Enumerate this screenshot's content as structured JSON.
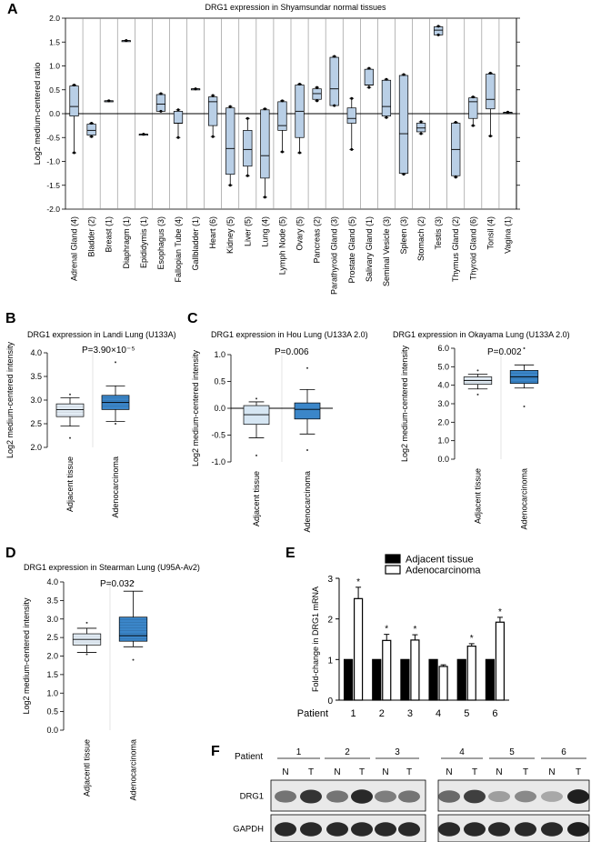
{
  "panels": {
    "A": "A",
    "B": "B",
    "C": "C",
    "D": "D",
    "E": "E",
    "F": "F"
  },
  "chart_data": [
    {
      "id": "A",
      "type": "box",
      "title": "DRG1 expression in Shyamsundar normal tissues",
      "ylabel": "Log2 medium-centered ratio",
      "ylim": [
        -2.0,
        2.0
      ],
      "yticks": [
        "-2.0",
        "-1.5",
        "-1.0",
        "-0.5",
        "0.0",
        "0.5",
        "1.0",
        "1.5",
        "2.0"
      ],
      "ytick_values": [
        -2.0,
        -1.5,
        -1.0,
        -0.5,
        0.0,
        0.5,
        1.0,
        1.5,
        2.0
      ],
      "categories": [
        "Adrenal Gland (4)",
        "Bladder (2)",
        "Breast (1)",
        "Diaphragm (1)",
        "Epididymis (1)",
        "Esophagus (3)",
        "Fallopian Tube (4)",
        "Gallbladder (1)",
        "Heart (6)",
        "Kidney (5)",
        "Liver (5)",
        "Lung (4)",
        "Lymph Node (5)",
        "Ovary (5)",
        "Pancreas (2)",
        "Parathyroid Gland (3)",
        "Prostate Gland (5)",
        "Salivary Gland (1)",
        "Seminal Vesicle (3)",
        "Spleen (3)",
        "Stomach (2)",
        "Testis (3)",
        "Thymus Gland (2)",
        "Thyroid Gland (6)",
        "Tonsil (4)",
        "Vagina (1)"
      ],
      "boxes": [
        {
          "min": -0.82,
          "q1": -0.05,
          "median": 0.15,
          "q3": 0.58,
          "max": 0.6
        },
        {
          "min": -0.48,
          "q1": -0.45,
          "median": -0.35,
          "q3": -0.22,
          "max": -0.2
        },
        {
          "min": 0.27,
          "q1": 0.27,
          "median": 0.27,
          "q3": 0.27,
          "max": 0.27
        },
        {
          "min": 1.53,
          "q1": 1.53,
          "median": 1.53,
          "q3": 1.53,
          "max": 1.53
        },
        {
          "min": -0.43,
          "q1": -0.43,
          "median": -0.43,
          "q3": -0.43,
          "max": -0.43
        },
        {
          "min": 0.05,
          "q1": 0.05,
          "median": 0.2,
          "q3": 0.4,
          "max": 0.42
        },
        {
          "min": -0.5,
          "q1": -0.2,
          "median": -0.2,
          "q3": 0.05,
          "max": 0.08
        },
        {
          "min": 0.52,
          "q1": 0.52,
          "median": 0.52,
          "q3": 0.52,
          "max": 0.52
        },
        {
          "min": -0.48,
          "q1": -0.25,
          "median": 0.25,
          "q3": 0.35,
          "max": 0.38
        },
        {
          "min": -1.5,
          "q1": -1.27,
          "median": -0.73,
          "q3": 0.12,
          "max": 0.15
        },
        {
          "min": -1.3,
          "q1": -1.1,
          "median": -0.75,
          "q3": -0.35,
          "max": -0.1
        },
        {
          "min": -1.75,
          "q1": -1.35,
          "median": -0.88,
          "q3": 0.08,
          "max": 0.1
        },
        {
          "min": -0.8,
          "q1": -0.35,
          "median": -0.25,
          "q3": 0.25,
          "max": 0.27
        },
        {
          "min": -0.82,
          "q1": -0.5,
          "median": 0.05,
          "q3": 0.6,
          "max": 0.62
        },
        {
          "min": 0.27,
          "q1": 0.3,
          "median": 0.42,
          "q3": 0.52,
          "max": 0.55
        },
        {
          "min": 0.17,
          "q1": 0.17,
          "median": 0.52,
          "q3": 1.18,
          "max": 1.2
        },
        {
          "min": -0.75,
          "q1": -0.2,
          "median": -0.1,
          "q3": 0.12,
          "max": 0.32
        },
        {
          "min": 0.55,
          "q1": 0.6,
          "median": 0.6,
          "q3": 0.93,
          "max": 0.95
        },
        {
          "min": -0.08,
          "q1": -0.05,
          "median": 0.15,
          "q3": 0.7,
          "max": 0.72
        },
        {
          "min": -1.27,
          "q1": -1.25,
          "median": -0.42,
          "q3": 0.8,
          "max": 0.82
        },
        {
          "min": -0.42,
          "q1": -0.38,
          "median": -0.3,
          "q3": -0.2,
          "max": -0.17
        },
        {
          "min": 1.65,
          "q1": 1.65,
          "median": 1.75,
          "q3": 1.82,
          "max": 1.83
        },
        {
          "min": -1.33,
          "q1": -1.3,
          "median": -0.75,
          "q3": -0.2,
          "max": -0.18
        },
        {
          "min": -0.25,
          "q1": -0.1,
          "median": 0.25,
          "q3": 0.33,
          "max": 0.35
        },
        {
          "min": -0.47,
          "q1": 0.1,
          "median": 0.3,
          "q3": 0.83,
          "max": 0.85
        },
        {
          "min": 0.03,
          "q1": 0.03,
          "median": 0.03,
          "q3": 0.03,
          "max": 0.03
        }
      ]
    },
    {
      "id": "B",
      "type": "box",
      "title": "DRG1 expression in Landi Lung (U133A)",
      "ylabel": "Log2 medium-centered intensity",
      "ylim": [
        2.0,
        4.0
      ],
      "yticks": [
        "2.0",
        "2.5",
        "3.0",
        "3.5",
        "4.0"
      ],
      "ytick_values": [
        2.0,
        2.5,
        3.0,
        3.5,
        4.0
      ],
      "annotation": "P=3.90×10⁻⁵",
      "categories": [
        "Adjacent tissue",
        "Adenocarcinoma"
      ],
      "boxes": [
        {
          "min": 2.45,
          "q1": 2.65,
          "median": 2.8,
          "q3": 2.92,
          "max": 3.05,
          "outliers": [
            2.2,
            3.12
          ],
          "color": "#e4eef7"
        },
        {
          "min": 2.55,
          "q1": 2.8,
          "median": 2.95,
          "q3": 3.1,
          "max": 3.3,
          "outliers": [
            2.5,
            3.8
          ],
          "color": "#3b86c9"
        }
      ]
    },
    {
      "id": "C1",
      "type": "box",
      "title": "DRG1 expression in Hou Lung (U133A 2.0)",
      "ylabel": "Log2 medium-centered intensity",
      "ylim": [
        -1.0,
        1.0
      ],
      "yticks": [
        "-1.0",
        "-0.5",
        "0.0",
        "0.5",
        "1.0"
      ],
      "ytick_values": [
        -1.0,
        -0.5,
        0.0,
        0.5,
        1.0
      ],
      "annotation": "P=0.006",
      "categories": [
        "Adjacent tissue",
        "Adenocarcinoma"
      ],
      "boxes": [
        {
          "min": -0.55,
          "q1": -0.3,
          "median": -0.12,
          "q3": 0.05,
          "max": 0.12,
          "outliers": [
            -0.88,
            0.18
          ],
          "color": "#d6e6f3"
        },
        {
          "min": -0.48,
          "q1": -0.2,
          "median": -0.02,
          "q3": 0.1,
          "max": 0.35,
          "outliers": [
            -0.78,
            0.75
          ],
          "color": "#3b86c9"
        }
      ]
    },
    {
      "id": "C2",
      "type": "box",
      "title": "DRG1 expression in Okayama Lung (U133A 2.0)",
      "ylabel": "Log2 medium-centered intensity",
      "ylim": [
        0.0,
        6.0
      ],
      "yticks": [
        "0.0",
        "1.0",
        "2.0",
        "3.0",
        "4.0",
        "5.0",
        "6.0"
      ],
      "ytick_values": [
        0.0,
        1.0,
        2.0,
        3.0,
        4.0,
        5.0,
        6.0
      ],
      "annotation": "P=0.002",
      "categories": [
        "Adjacent tissue",
        "Adenocarcinoma"
      ],
      "boxes": [
        {
          "min": 3.8,
          "q1": 4.05,
          "median": 4.25,
          "q3": 4.45,
          "max": 4.6,
          "outliers": [
            3.5,
            4.8
          ],
          "color": "#e4eef7"
        },
        {
          "min": 3.85,
          "q1": 4.1,
          "median": 4.45,
          "q3": 4.8,
          "max": 5.1,
          "outliers": [
            2.85,
            6.0
          ],
          "color": "#3b86c9"
        }
      ]
    },
    {
      "id": "D",
      "type": "box",
      "title": "DRG1 expression in Stearman Lung (U95A-Av2)",
      "ylabel": "Log2 medium-centered intensity",
      "ylim": [
        0.0,
        4.0
      ],
      "yticks": [
        "0.0",
        "0.5",
        "1.0",
        "1.5",
        "2.0",
        "2.5",
        "3.0",
        "3.5",
        "4.0"
      ],
      "ytick_values": [
        0.0,
        0.5,
        1.0,
        1.5,
        2.0,
        2.5,
        3.0,
        3.5,
        4.0
      ],
      "annotation": "P=0.032",
      "categories": [
        "Adjacentl tissue",
        "Adenocarcinoma"
      ],
      "boxes": [
        {
          "min": 2.1,
          "q1": 2.3,
          "median": 2.45,
          "q3": 2.6,
          "max": 2.75,
          "outliers": [
            2.05,
            2.9
          ],
          "color": "#e4eef7"
        },
        {
          "min": 2.25,
          "q1": 2.4,
          "median": 2.55,
          "q3": 3.05,
          "max": 3.75,
          "outliers": [
            1.9,
            4.0
          ],
          "color": "#3b86c9"
        }
      ]
    },
    {
      "id": "E",
      "type": "bar",
      "ylabel": "Fold-change in DRG1 mRNA",
      "ylim": [
        0,
        3
      ],
      "yticks": [
        "0",
        "1",
        "2",
        "3"
      ],
      "ytick_values": [
        0,
        1,
        2,
        3
      ],
      "xlabel_prefix": "Patient",
      "categories": [
        "1",
        "2",
        "3",
        "4",
        "5",
        "6"
      ],
      "series": [
        {
          "name": "Adjacent tissue",
          "values": [
            1,
            1,
            1,
            1,
            1,
            1
          ],
          "errors": [
            0,
            0,
            0,
            0,
            0,
            0
          ],
          "color": "#000000"
        },
        {
          "name": "Adenocarcinoma",
          "values": [
            2.5,
            1.47,
            1.48,
            0.83,
            1.33,
            1.92
          ],
          "errors": [
            0.28,
            0.15,
            0.13,
            0.04,
            0.06,
            0.12
          ],
          "color": "#ffffff"
        }
      ],
      "significance": [
        "*",
        "*",
        "*",
        "",
        "*",
        "*"
      ]
    }
  ],
  "western_blot": {
    "patient_label": "Patient",
    "patients": [
      "1",
      "2",
      "3",
      "4",
      "5",
      "6"
    ],
    "lanes": [
      "N",
      "T",
      "N",
      "T",
      "N",
      "T",
      "N",
      "T",
      "N",
      "T",
      "N",
      "T"
    ],
    "rows": [
      "DRG1",
      "GAPDH"
    ],
    "drg1_intensity": [
      0.55,
      0.85,
      0.55,
      0.9,
      0.5,
      0.55,
      0.6,
      0.8,
      0.35,
      0.45,
      0.3,
      0.95
    ],
    "gapdh_intensity": [
      0.9,
      0.9,
      0.9,
      0.9,
      0.9,
      0.9,
      0.9,
      0.9,
      0.9,
      0.9,
      0.9,
      0.95
    ]
  }
}
